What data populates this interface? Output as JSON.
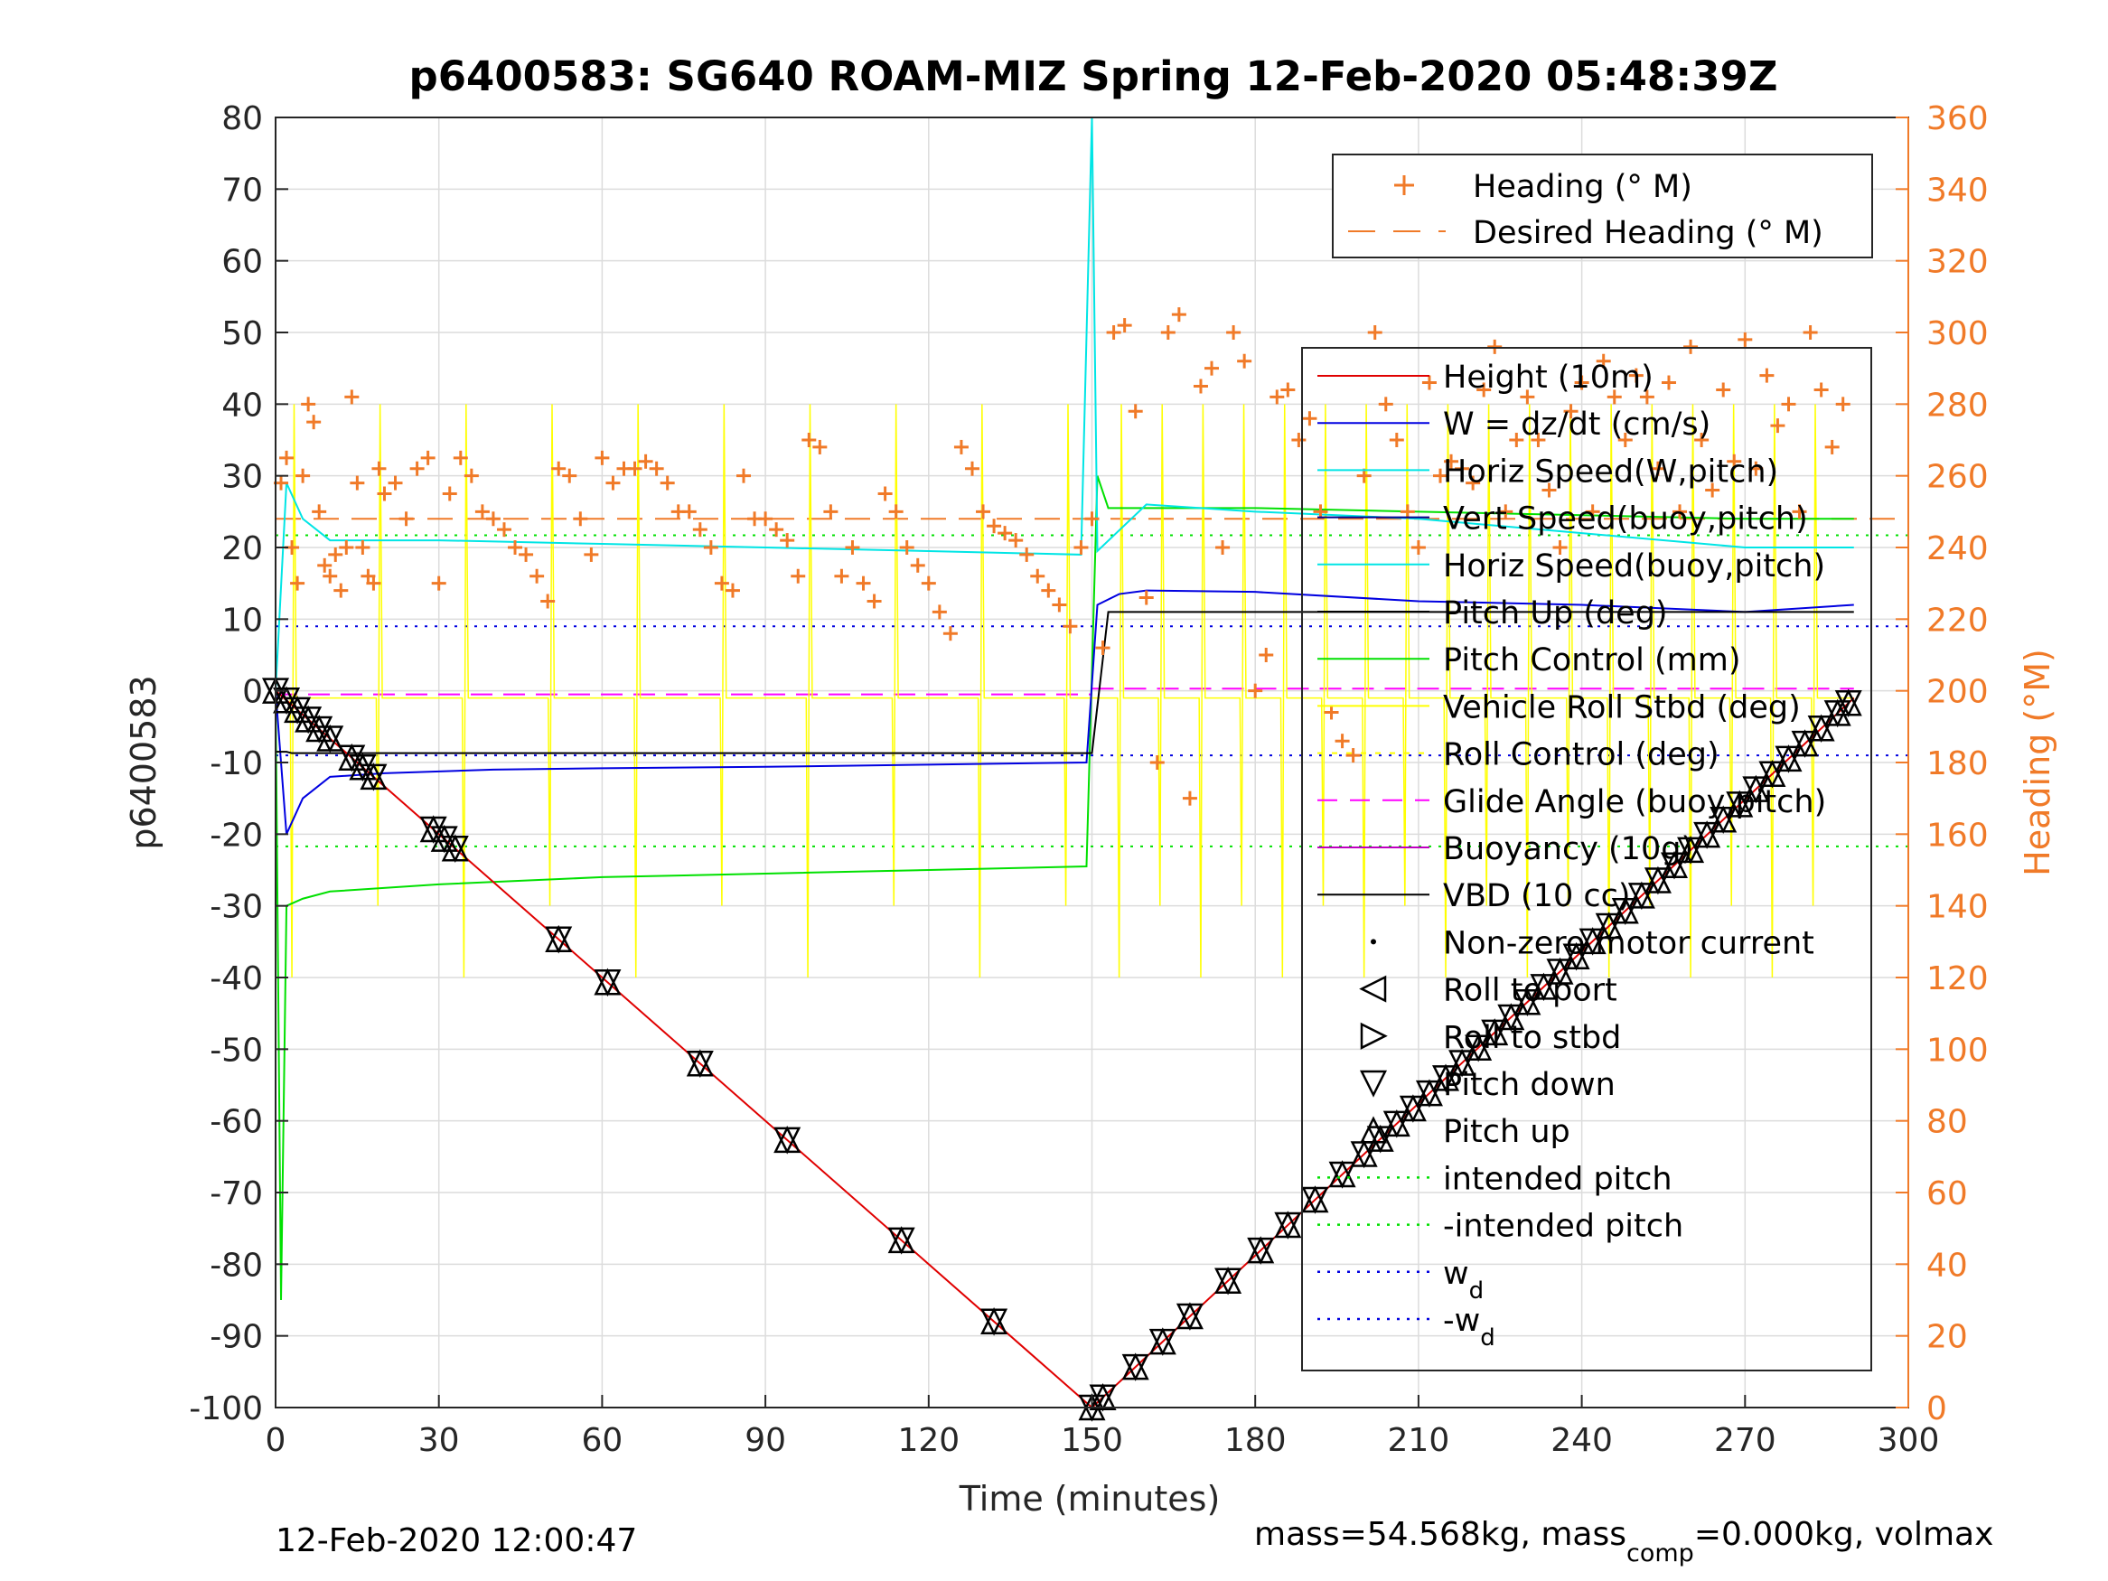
{
  "chart_data": {
    "type": "line",
    "title": "p6400583: SG640 ROAM-MIZ Spring 12-Feb-2020 05:48:39Z",
    "xlabel": "Time (minutes)",
    "ylabel_left": "p6400583",
    "ylabel_right": "Heading (°M)",
    "xlim": [
      0,
      300
    ],
    "ylim_left": [
      -100,
      80
    ],
    "ylim_right": [
      0,
      360
    ],
    "x_ticks": [
      "0",
      "30",
      "60",
      "90",
      "120",
      "150",
      "180",
      "210",
      "240",
      "270",
      "300"
    ],
    "y_ticks_left": [
      "80",
      "70",
      "60",
      "50",
      "40",
      "30",
      "20",
      "10",
      "0",
      "-10",
      "-20",
      "-30",
      "-40",
      "-50",
      "-60",
      "-70",
      "-80",
      "-90",
      "-100"
    ],
    "y_ticks_right": [
      "360",
      "340",
      "320",
      "300",
      "280",
      "260",
      "240",
      "220",
      "200",
      "180",
      "160",
      "140",
      "120",
      "100",
      "80",
      "60",
      "40",
      "20",
      "0"
    ],
    "grid": true,
    "footer_left": "12-Feb-2020 12:00:47",
    "footer_right": "mass=54.568kg, mass",
    "footer_sub": "comp",
    "footer_right2": "=0.000kg, volmax",
    "legend_top": [
      {
        "label": "Heading (° M)",
        "color": "#f07a28",
        "style": "plus"
      },
      {
        "label": "Desired Heading (° M)",
        "color": "#f07a28",
        "style": "dash"
      }
    ],
    "legend_main": [
      {
        "label": "Height (10m)",
        "color": "#e00000",
        "style": "line"
      },
      {
        "label": "W = dz/dt (cm/s)",
        "color": "#0000e0",
        "style": "line"
      },
      {
        "label": "Horiz Speed(W,pitch)",
        "color": "#00e5e5",
        "style": "line"
      },
      {
        "label": "Vert Speed(buoy,pitch)",
        "color": "#000090",
        "style": "line"
      },
      {
        "label": "Horiz Speed(buoy,pitch)",
        "color": "#00e5e5",
        "style": "line"
      },
      {
        "label": "Pitch Up (deg)",
        "color": "#000000",
        "style": "line"
      },
      {
        "label": "Pitch Control (mm)",
        "color": "#00e000",
        "style": "line"
      },
      {
        "label": "Vehicle Roll Stbd (deg)",
        "color": "#ffff00",
        "style": "line"
      },
      {
        "label": "Roll Control (deg)",
        "color": "#ffff00",
        "style": "dot"
      },
      {
        "label": "Glide Angle (buoy,pitch)",
        "color": "#ff00ff",
        "style": "dash"
      },
      {
        "label": "Buoyancy (10g)",
        "color": "#c000c0",
        "style": "line"
      },
      {
        "label": "VBD (10 cc)",
        "color": "#000000",
        "style": "line"
      },
      {
        "label": "Non-zero motor current",
        "color": "#000000",
        "style": "point"
      },
      {
        "label": "Roll to port",
        "color": "#000000",
        "style": "tri-left"
      },
      {
        "label": "Roll to stbd",
        "color": "#000000",
        "style": "tri-right"
      },
      {
        "label": "Pitch down",
        "color": "#000000",
        "style": "tri-down"
      },
      {
        "label": "Pitch up",
        "color": "#000000",
        "style": "tri-up"
      },
      {
        "label": "intended pitch",
        "color": "#00e000",
        "style": "dotted"
      },
      {
        "label": "-intended pitch",
        "color": "#00e000",
        "style": "dotted"
      },
      {
        "label": "w",
        "sub": "d",
        "color": "#0000e0",
        "style": "dotted"
      },
      {
        "label": "-w",
        "sub": "d",
        "color": "#0000e0",
        "style": "dotted"
      }
    ],
    "reference_lines": [
      {
        "name": "intended pitch",
        "y": 21.7,
        "color": "#00e000"
      },
      {
        "name": "-intended pitch",
        "y": -21.7,
        "color": "#00e000"
      },
      {
        "name": "w_d",
        "y": 9,
        "color": "#0000e0"
      },
      {
        "name": "-w_d",
        "y": -9,
        "color": "#0000e0"
      },
      {
        "name": "desired heading",
        "y_right": 248,
        "color": "#f07a28"
      },
      {
        "name": "glide angle dive",
        "y": -0.5,
        "color": "#ff00ff",
        "x_range": [
          0,
          150
        ]
      },
      {
        "name": "glide angle climb",
        "y": 0.3,
        "color": "#ff00ff",
        "x_range": [
          150,
          290
        ]
      }
    ],
    "height_series": {
      "x": [
        0,
        150,
        290
      ],
      "y": [
        0,
        -100,
        -1
      ]
    },
    "vbd_series": {
      "x": [
        0,
        2,
        3,
        149,
        150,
        153,
        290
      ],
      "y": [
        -8.5,
        -8.5,
        -8.7,
        -8.7,
        -8.7,
        11,
        11
      ]
    },
    "w_series": {
      "x": [
        0,
        2,
        5,
        10,
        20,
        40,
        60,
        90,
        120,
        149,
        151,
        155,
        160,
        180,
        210,
        240,
        270,
        290
      ],
      "y": [
        0,
        -20,
        -15,
        -12,
        -11.5,
        -11,
        -10.8,
        -10.6,
        -10.3,
        -10,
        12,
        13.5,
        14,
        13.8,
        12.5,
        12,
        11,
        12
      ]
    },
    "horiz_speed_series": {
      "x": [
        0,
        2,
        5,
        10,
        30,
        60,
        90,
        120,
        148,
        150,
        151,
        160,
        180,
        210,
        240,
        270,
        290
      ],
      "y": [
        0,
        29,
        24,
        21,
        21,
        20.5,
        20,
        19.5,
        19,
        80,
        19.5,
        26,
        25,
        24,
        22,
        20,
        20
      ]
    },
    "pitch_control_series": {
      "x": [
        0,
        1,
        2,
        5,
        10,
        30,
        60,
        90,
        120,
        149,
        151,
        153,
        160,
        180,
        210,
        240,
        270,
        290
      ],
      "y": [
        0,
        -85,
        -30,
        -29,
        -28,
        -27,
        -26,
        -25.5,
        -25,
        -24.5,
        30,
        25.5,
        25.5,
        25.5,
        25,
        24.5,
        24,
        24
      ]
    },
    "heading_scatter": {
      "description_free": true,
      "x": [
        1,
        2,
        3,
        4,
        5,
        6,
        7,
        8,
        9,
        10,
        11,
        12,
        13,
        14,
        15,
        16,
        17,
        18,
        19,
        20,
        22,
        24,
        26,
        28,
        30,
        32,
        34,
        36,
        38,
        40,
        42,
        44,
        46,
        48,
        50,
        52,
        54,
        56,
        58,
        60,
        62,
        64,
        66,
        68,
        70,
        72,
        74,
        76,
        78,
        80,
        82,
        84,
        86,
        88,
        90,
        92,
        94,
        96,
        98,
        100,
        102,
        104,
        106,
        108,
        110,
        112,
        114,
        116,
        118,
        120,
        122,
        124,
        126,
        128,
        130,
        132,
        134,
        136,
        138,
        140,
        142,
        144,
        146,
        148,
        150,
        152,
        154,
        156,
        158,
        160,
        162,
        164,
        166,
        168,
        170,
        172,
        174,
        176,
        178,
        180,
        182,
        184,
        186,
        188,
        190,
        192,
        194,
        196,
        198,
        200,
        202,
        204,
        206,
        208,
        210,
        212,
        214,
        216,
        218,
        220,
        222,
        224,
        226,
        228,
        230,
        232,
        234,
        236,
        238,
        240,
        242,
        244,
        246,
        248,
        250,
        252,
        254,
        256,
        258,
        260,
        262,
        264,
        266,
        268,
        270,
        272,
        274,
        276,
        278,
        280,
        282,
        284,
        286,
        288
      ],
      "y": [
        258,
        265,
        240,
        230,
        260,
        280,
        275,
        250,
        235,
        232,
        238,
        228,
        240,
        282,
        258,
        240,
        232,
        230,
        262,
        255,
        258,
        248,
        262,
        265,
        230,
        255,
        265,
        260,
        250,
        248,
        245,
        240,
        238,
        232,
        225,
        262,
        260,
        248,
        238,
        265,
        258,
        262,
        262,
        264,
        262,
        258,
        250,
        250,
        245,
        240,
        230,
        228,
        260,
        248,
        248,
        245,
        242,
        232,
        270,
        268,
        250,
        232,
        240,
        230,
        225,
        255,
        250,
        240,
        235,
        230,
        222,
        216,
        268,
        262,
        250,
        246,
        244,
        242,
        238,
        232,
        228,
        224,
        218,
        240,
        248,
        212,
        300,
        302,
        278,
        226,
        180,
        300,
        305,
        170,
        285,
        290,
        240,
        300,
        292,
        200,
        210,
        282,
        284,
        270,
        276,
        250,
        194,
        186,
        182,
        260,
        300,
        280,
        270,
        250,
        240,
        286,
        260,
        264,
        262,
        258,
        284,
        296,
        250,
        270,
        282,
        270,
        256,
        240,
        278,
        286,
        250,
        292,
        282,
        270,
        288,
        282,
        262,
        286,
        250,
        296,
        270,
        256,
        284,
        264,
        298,
        262,
        288,
        274,
        280,
        250,
        300,
        284,
        268,
        280
      ]
    }
  }
}
